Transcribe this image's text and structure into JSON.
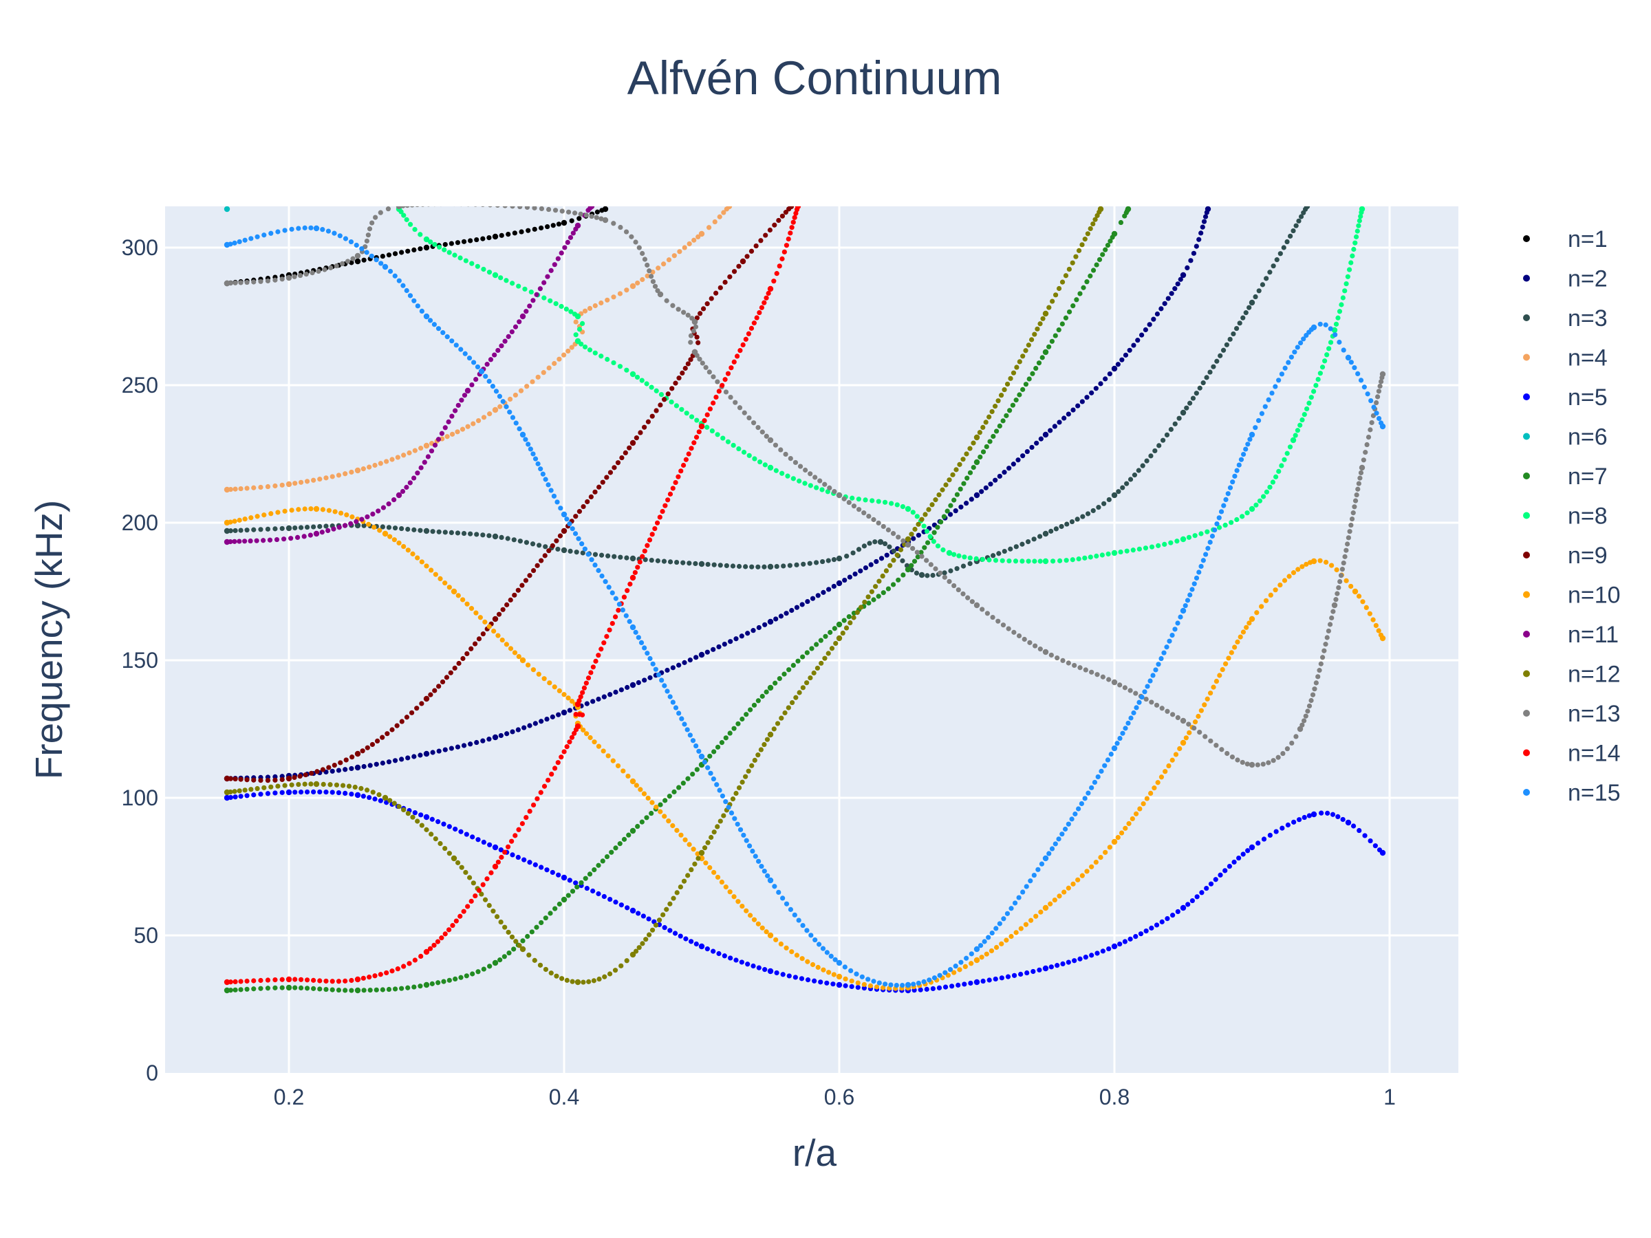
{
  "chart_data": {
    "type": "scatter",
    "title": "Alfvén Continuum",
    "xlabel": "r/a",
    "ylabel": "Frequency (kHz)",
    "xlim": [
      0.11,
      1.05
    ],
    "ylim": [
      0,
      315
    ],
    "xticks": [
      0.2,
      0.4,
      0.6,
      0.8,
      1
    ],
    "xtick_labels": [
      "0.2",
      "0.4",
      "0.6",
      "0.8",
      "1"
    ],
    "yticks": [
      0,
      50,
      100,
      150,
      200,
      250,
      300
    ],
    "ytick_labels": [
      "0",
      "50",
      "100",
      "150",
      "200",
      "250",
      "300"
    ],
    "grid": true,
    "legend_position": "right",
    "plot_background": "#e5ecf6",
    "series": [
      {
        "name": "n=1",
        "color": "#000000",
        "points": [
          [
            0.155,
            287
          ],
          [
            0.2,
            290
          ],
          [
            0.25,
            295
          ],
          [
            0.3,
            300
          ],
          [
            0.35,
            304
          ],
          [
            0.4,
            309
          ],
          [
            0.43,
            314
          ]
        ]
      },
      {
        "name": "n=2",
        "color": "#00007f",
        "points": [
          [
            0.155,
            107
          ],
          [
            0.2,
            108
          ],
          [
            0.25,
            111
          ],
          [
            0.3,
            116
          ],
          [
            0.35,
            122
          ],
          [
            0.4,
            131
          ],
          [
            0.45,
            141
          ],
          [
            0.5,
            152
          ],
          [
            0.55,
            164
          ],
          [
            0.6,
            178
          ],
          [
            0.65,
            193
          ],
          [
            0.7,
            210
          ],
          [
            0.75,
            232
          ],
          [
            0.8,
            256
          ],
          [
            0.85,
            290
          ],
          [
            0.868,
            314
          ]
        ]
      },
      {
        "name": "n=3",
        "color": "#2f4f4f",
        "points": [
          [
            0.155,
            197
          ],
          [
            0.2,
            198
          ],
          [
            0.25,
            199
          ],
          [
            0.3,
            197
          ],
          [
            0.35,
            195
          ],
          [
            0.4,
            190
          ],
          [
            0.45,
            187
          ],
          [
            0.5,
            185
          ],
          [
            0.55,
            184
          ],
          [
            0.6,
            187
          ],
          [
            0.63,
            193
          ],
          [
            0.66,
            181
          ],
          [
            0.7,
            186
          ],
          [
            0.75,
            196
          ],
          [
            0.8,
            210
          ],
          [
            0.85,
            240
          ],
          [
            0.9,
            280
          ],
          [
            0.94,
            315
          ]
        ]
      },
      {
        "name": "n=4",
        "color": "#f4a460",
        "points": [
          [
            0.155,
            212
          ],
          [
            0.2,
            214
          ],
          [
            0.25,
            219
          ],
          [
            0.3,
            228
          ],
          [
            0.35,
            241
          ],
          [
            0.41,
            266
          ],
          [
            0.41,
            275
          ],
          [
            0.45,
            286
          ],
          [
            0.5,
            305
          ],
          [
            0.52,
            315
          ]
        ]
      },
      {
        "name": "n=5",
        "color": "#0000ff",
        "points": [
          [
            0.155,
            100
          ],
          [
            0.2,
            102
          ],
          [
            0.25,
            101
          ],
          [
            0.3,
            93
          ],
          [
            0.35,
            82
          ],
          [
            0.4,
            71
          ],
          [
            0.45,
            59
          ],
          [
            0.5,
            46
          ],
          [
            0.55,
            37
          ],
          [
            0.6,
            32
          ],
          [
            0.65,
            30
          ],
          [
            0.7,
            33
          ],
          [
            0.75,
            38
          ],
          [
            0.8,
            46
          ],
          [
            0.85,
            60
          ],
          [
            0.9,
            82
          ],
          [
            0.945,
            94
          ],
          [
            0.97,
            91
          ],
          [
            0.995,
            80
          ]
        ]
      },
      {
        "name": "n=6",
        "color": "#00bfbf",
        "points": [
          [
            0.155,
            314
          ]
        ]
      },
      {
        "name": "n=7",
        "color": "#228b22",
        "points": [
          [
            0.155,
            30
          ],
          [
            0.2,
            31
          ],
          [
            0.25,
            30
          ],
          [
            0.3,
            32
          ],
          [
            0.35,
            40
          ],
          [
            0.4,
            63
          ],
          [
            0.45,
            88
          ],
          [
            0.5,
            112
          ],
          [
            0.55,
            140
          ],
          [
            0.6,
            163
          ],
          [
            0.65,
            183
          ],
          [
            0.7,
            222
          ],
          [
            0.75,
            262
          ],
          [
            0.8,
            305
          ],
          [
            0.81,
            314
          ]
        ]
      },
      {
        "name": "n=8",
        "color": "#00ff7f",
        "points": [
          [
            0.28,
            314
          ],
          [
            0.3,
            303
          ],
          [
            0.35,
            290
          ],
          [
            0.41,
            275
          ],
          [
            0.41,
            266
          ],
          [
            0.45,
            254
          ],
          [
            0.5,
            236
          ],
          [
            0.55,
            220
          ],
          [
            0.6,
            210
          ],
          [
            0.65,
            205
          ],
          [
            0.68,
            189
          ],
          [
            0.75,
            186
          ],
          [
            0.8,
            189
          ],
          [
            0.85,
            194
          ],
          [
            0.9,
            205
          ],
          [
            0.93,
            230
          ],
          [
            0.96,
            270
          ],
          [
            0.98,
            314
          ]
        ]
      },
      {
        "name": "n=9",
        "color": "#7f0000",
        "points": [
          [
            0.155,
            107
          ],
          [
            0.2,
            107
          ],
          [
            0.25,
            116
          ],
          [
            0.3,
            136
          ],
          [
            0.35,
            165
          ],
          [
            0.4,
            197
          ],
          [
            0.45,
            229
          ],
          [
            0.495,
            262
          ],
          [
            0.495,
            273
          ],
          [
            0.53,
            295
          ],
          [
            0.565,
            315
          ]
        ]
      },
      {
        "name": "n=10",
        "color": "#ffa500",
        "points": [
          [
            0.155,
            200
          ],
          [
            0.22,
            205
          ],
          [
            0.27,
            196
          ],
          [
            0.32,
            175
          ],
          [
            0.37,
            150
          ],
          [
            0.41,
            133
          ],
          [
            0.41,
            127
          ],
          [
            0.45,
            106
          ],
          [
            0.5,
            78
          ],
          [
            0.55,
            50
          ],
          [
            0.6,
            35
          ],
          [
            0.65,
            31
          ],
          [
            0.7,
            41
          ],
          [
            0.75,
            60
          ],
          [
            0.8,
            84
          ],
          [
            0.85,
            120
          ],
          [
            0.9,
            165
          ],
          [
            0.945,
            186
          ],
          [
            0.975,
            175
          ],
          [
            0.995,
            158
          ]
        ]
      },
      {
        "name": "n=11",
        "color": "#8b008b",
        "points": [
          [
            0.155,
            193
          ],
          [
            0.22,
            196
          ],
          [
            0.28,
            210
          ],
          [
            0.33,
            248
          ],
          [
            0.37,
            275
          ],
          [
            0.41,
            308
          ],
          [
            0.42,
            315
          ]
        ]
      },
      {
        "name": "n=12",
        "color": "#7f7f00",
        "points": [
          [
            0.155,
            102
          ],
          [
            0.22,
            105
          ],
          [
            0.27,
            100
          ],
          [
            0.32,
            78
          ],
          [
            0.37,
            45
          ],
          [
            0.41,
            33
          ],
          [
            0.45,
            43
          ],
          [
            0.5,
            80
          ],
          [
            0.55,
            123
          ],
          [
            0.6,
            158
          ],
          [
            0.65,
            194
          ],
          [
            0.7,
            231
          ],
          [
            0.75,
            276
          ],
          [
            0.79,
            314
          ]
        ]
      },
      {
        "name": "n=13",
        "color": "#808080",
        "points": [
          [
            0.155,
            287
          ],
          [
            0.2,
            289
          ],
          [
            0.25,
            297
          ],
          [
            0.28,
            315
          ],
          [
            0.43,
            310
          ],
          [
            0.47,
            283
          ],
          [
            0.495,
            273
          ],
          [
            0.495,
            262
          ],
          [
            0.55,
            230
          ],
          [
            0.6,
            210
          ],
          [
            0.65,
            192
          ],
          [
            0.7,
            170
          ],
          [
            0.75,
            153
          ],
          [
            0.8,
            142
          ],
          [
            0.85,
            128
          ],
          [
            0.9,
            112
          ],
          [
            0.935,
            125
          ],
          [
            0.96,
            170
          ],
          [
            0.98,
            220
          ],
          [
            0.995,
            254
          ]
        ]
      },
      {
        "name": "n=14",
        "color": "#ff0000",
        "points": [
          [
            0.155,
            33
          ],
          [
            0.2,
            34
          ],
          [
            0.25,
            34
          ],
          [
            0.3,
            44
          ],
          [
            0.35,
            75
          ],
          [
            0.41,
            126
          ],
          [
            0.41,
            134
          ],
          [
            0.45,
            180
          ],
          [
            0.5,
            235
          ],
          [
            0.55,
            285
          ],
          [
            0.57,
            315
          ]
        ]
      },
      {
        "name": "n=15",
        "color": "#1e90ff",
        "points": [
          [
            0.155,
            301
          ],
          [
            0.22,
            307
          ],
          [
            0.27,
            293
          ],
          [
            0.3,
            275
          ],
          [
            0.34,
            255
          ],
          [
            0.37,
            232
          ],
          [
            0.4,
            203
          ],
          [
            0.45,
            162
          ],
          [
            0.5,
            115
          ],
          [
            0.55,
            70
          ],
          [
            0.6,
            40
          ],
          [
            0.65,
            32
          ],
          [
            0.7,
            45
          ],
          [
            0.75,
            78
          ],
          [
            0.8,
            118
          ],
          [
            0.85,
            168
          ],
          [
            0.9,
            232
          ],
          [
            0.945,
            271
          ],
          [
            0.97,
            260
          ],
          [
            0.995,
            235
          ]
        ]
      }
    ]
  }
}
